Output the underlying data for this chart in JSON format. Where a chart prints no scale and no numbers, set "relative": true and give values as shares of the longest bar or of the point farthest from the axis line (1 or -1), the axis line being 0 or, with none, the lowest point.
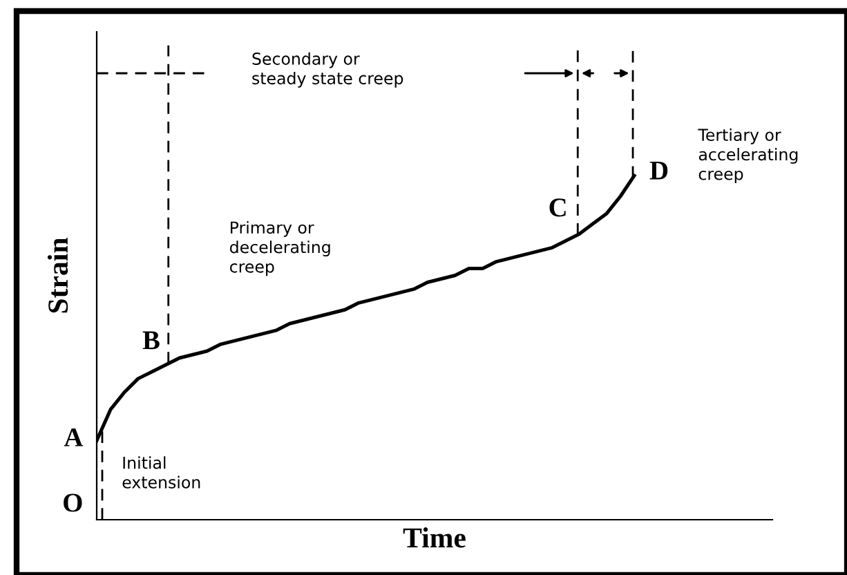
{
  "chart_data": {
    "type": "line",
    "relative": true,
    "xlabel": "Time",
    "ylabel": "Strain",
    "categories": [
      null,
      null,
      null,
      null,
      null,
      null,
      null,
      null,
      null,
      null,
      null,
      null,
      null,
      null,
      null,
      null,
      null,
      null,
      null,
      null,
      null,
      null,
      null,
      null,
      null,
      null,
      null,
      null,
      null,
      null,
      null,
      null,
      null,
      null,
      null,
      null,
      null,
      null,
      null,
      null
    ],
    "series": [
      {
        "color": "#000000",
        "values": [
          0.23,
          0.32,
          0.37,
          0.41,
          0.43,
          0.45,
          0.47,
          0.48,
          0.49,
          0.51,
          0.52,
          0.53,
          0.54,
          0.55,
          0.57,
          0.58,
          0.59,
          0.6,
          0.61,
          0.63,
          0.64,
          0.65,
          0.66,
          0.67,
          0.69,
          0.7,
          0.71,
          0.73,
          0.73,
          0.75,
          0.76,
          0.77,
          0.78,
          0.79,
          0.81,
          0.83,
          0.86,
          0.89,
          0.94,
          1.0
        ]
      }
    ],
    "annotations": [
      "A",
      "O",
      "B",
      "C",
      "D",
      "Secondary or\nsteady state creep",
      "Primary or\ndecelerating\ncreep",
      "Tertiary or\naccelerating\ncreep",
      "Initial\nextension"
    ],
    "marker": "none",
    "line_style": "solid"
  }
}
